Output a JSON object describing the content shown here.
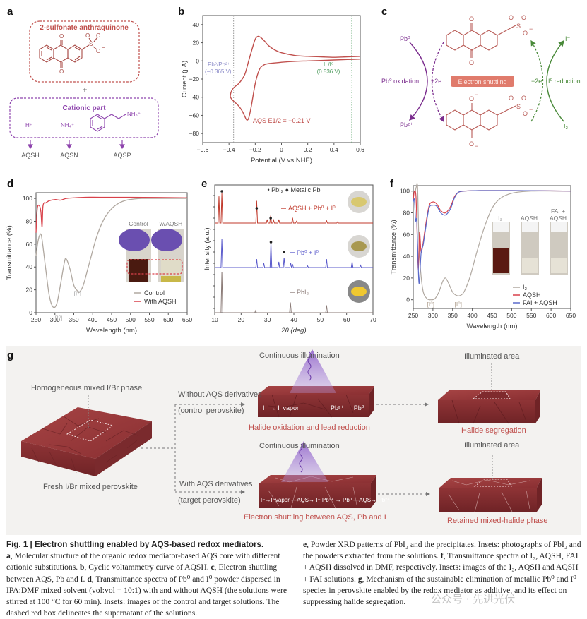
{
  "panels": {
    "a": {
      "label": "a",
      "core_title": "2-sulfonate anthraquinone",
      "plus": "+",
      "cation_title": "Cationic part",
      "cations": [
        "H⁺",
        "NH₄⁺",
        "NH₃⁺"
      ],
      "products": [
        "AQSH",
        "AQSN",
        "AQSP"
      ],
      "colors": {
        "core": "#c0504d",
        "cation": "#8e44ad"
      }
    },
    "c": {
      "label": "c",
      "pb0": "Pb⁰",
      "pb2": "Pb²⁺",
      "pb_ox": "Pb⁰ oxidation",
      "plus2e": "+2e",
      "center": "Electron shuttling",
      "minus2e": "−2e",
      "i_red": "I⁰ reduction",
      "i_minus": "I⁻",
      "i2": "I₂",
      "colors": {
        "pb": "#7b2d8e",
        "i": "#4a8a3a",
        "center_bg": "#e07b6c"
      }
    },
    "g": {
      "label": "g",
      "homogeneous": "Homogeneous mixed I/Br phase",
      "fresh": "Fresh I/Br mixed perovskite",
      "without": "Without AQS derivatives",
      "control": "(control perovskite)",
      "with": "With AQS derivatives",
      "target": "(target perovskite)",
      "illum1": "Continuous illumination",
      "illum2": "Continuous illumination",
      "ctrl_eq_left": "I⁻ → I⁻vapor",
      "ctrl_eq_right": "Pb²⁺ → Pb⁰",
      "tgt_eq": "I⁻→I⁻vapor —AQS→ I⁻ Pb²⁺ → Pb⁰ —AQS→ Pb²⁺",
      "result_ctrl_mid": "Halide oxidation and lead reduction",
      "result_tgt_mid": "Electron shuttling between AQS, Pb and I",
      "illuminated1": "Illuminated area",
      "illuminated2": "Illuminated area",
      "result_ctrl": "Halide segregation",
      "result_tgt": "Retained mixed-halide phase"
    }
  },
  "caption": {
    "title": "Fig. 1 | Electron shuttling enabled by AQS-based redox mediators.",
    "left": [
      {
        "b": "a",
        "t": ", Molecular structure of the organic redox mediator-based AQS core with different cationic substitutions. "
      },
      {
        "b": "b",
        "t": ", Cyclic voltammetry curve of AQSH. "
      },
      {
        "b": "c",
        "t": ", Electron shuttling between AQS, Pb and I. "
      },
      {
        "b": "d",
        "t": ", Transmittance spectra of Pb⁰ and I⁰ powder dispersed in IPA:DMF mixed solvent (vol:vol = 10:1) with and without AQSH (the solutions were stirred at 100 °C for 60 min). Insets: images of the control and target solutions. The dashed red box delineates the supernatant of the solutions."
      }
    ],
    "right": [
      {
        "b": "e",
        "t": ", Powder XRD patterns of PbI₂ and the precipitates. Insets: photographs of PbI₂ and the powders extracted from the solutions. "
      },
      {
        "b": "f",
        "t": ", Transmittance spectra of I₂, AQSH, FAI + AQSH dissolved in DMF, respectively. Insets: images of the I₂, AQSH and AQSH + FAI solutions. "
      },
      {
        "b": "g",
        "t": ", Mechanism of the sustainable elimination of metallic Pb⁰ and I⁰ species in perovskite enabled by the redox mediator as additive, and its effect on suppressing halide segregation."
      }
    ],
    "watermark": "公众号 · 先进光伏"
  },
  "chart_data": [
    {
      "id": "b",
      "type": "line",
      "title": "",
      "xlabel": "Potential (V vs NHE)",
      "ylabel": "Current (μA)",
      "xlim": [
        -0.6,
        0.6
      ],
      "ylim": [
        -90,
        50
      ],
      "xticks": [
        -0.6,
        -0.4,
        -0.2,
        0,
        0.2,
        0.4,
        0.6
      ],
      "yticks": [
        40,
        20,
        0,
        -20,
        -40,
        -60,
        -80
      ],
      "series": [
        {
          "name": "AQSH CV",
          "color": "#c0504d",
          "x": [
            0.6,
            0.5,
            0.4,
            0.3,
            0.2,
            0.1,
            0.0,
            -0.05,
            -0.1,
            -0.13,
            -0.16,
            -0.18,
            -0.2,
            -0.22,
            -0.25,
            -0.28,
            -0.32,
            -0.36,
            -0.38,
            -0.39,
            -0.38,
            -0.36,
            -0.33,
            -0.3,
            -0.28,
            -0.265,
            -0.25,
            -0.23,
            -0.2,
            -0.17,
            -0.14,
            -0.1,
            0.0,
            0.1,
            0.2,
            0.3,
            0.4,
            0.5,
            0.6
          ],
          "y": [
            5,
            4.5,
            4,
            4.5,
            5,
            6,
            9,
            12,
            17,
            22,
            26,
            27,
            24,
            15,
            0,
            -15,
            -24,
            -29,
            -33,
            -39,
            -42,
            -45,
            -49,
            -55,
            -61,
            -65,
            -63,
            -50,
            -25,
            -10,
            -5,
            -3,
            -1.5,
            -0.5,
            0,
            0.5,
            1,
            1.5,
            2
          ]
        }
      ],
      "annotations": [
        {
          "text": "Pb⁰/Pb²⁺",
          "sub": "(−0.365 V)",
          "x": -0.365,
          "color": "#8a8ac8"
        },
        {
          "text": "I⁻/I⁰",
          "sub": "(0.536 V)",
          "x": 0.536,
          "color": "#4a9a5a"
        },
        {
          "text": "AQS E1/2 = −0.21 V",
          "color": "#c0504d"
        }
      ]
    },
    {
      "id": "d",
      "type": "line",
      "xlabel": "Wavelength (nm)",
      "ylabel": "Transmittance (%)",
      "xlim": [
        250,
        650
      ],
      "ylim": [
        0,
        105
      ],
      "xticks": [
        250,
        300,
        350,
        400,
        450,
        500,
        550,
        600,
        650
      ],
      "yticks": [
        0,
        20,
        40,
        60,
        80,
        100
      ],
      "legend": "bottom-right",
      "series": [
        {
          "name": "Control",
          "color": "#b0a8a0",
          "x": [
            250,
            255,
            260,
            265,
            275,
            285,
            295,
            305,
            315,
            325,
            330,
            340,
            350,
            360,
            365,
            375,
            390,
            410,
            430,
            450,
            470,
            490,
            510,
            530,
            560,
            600,
            650
          ],
          "y": [
            50,
            62,
            68,
            66,
            40,
            15,
            5,
            8,
            25,
            44,
            47,
            38,
            24,
            19,
            18,
            24,
            42,
            66,
            82,
            91,
            96,
            98.5,
            99.5,
            100,
            100,
            100,
            100
          ]
        },
        {
          "name": "With AQSH",
          "color": "#d9414a",
          "x": [
            250,
            253,
            256,
            260,
            263,
            266,
            268,
            271,
            275,
            285,
            300,
            315,
            330,
            350,
            380,
            420,
            500,
            650
          ],
          "y": [
            70,
            90,
            94,
            93,
            88,
            75,
            92,
            96,
            96,
            98,
            99,
            98.5,
            100,
            100.5,
            101,
            101,
            101,
            100.5
          ]
        }
      ],
      "annotations": [
        "[I⁰]",
        "[I⁰]"
      ],
      "inset_labels": [
        "Control",
        "w/AQSH"
      ]
    },
    {
      "id": "e",
      "type": "line",
      "xlabel": "2θ (deg)",
      "ylabel": "Intensity (a.u.)",
      "xlim": [
        10,
        70
      ],
      "xticks": [
        10,
        20,
        30,
        40,
        50,
        60,
        70
      ],
      "legend_markers": [
        "PbI₂",
        "Metalic Pb"
      ],
      "series": [
        {
          "name": "AQSH + Pb⁰ + I⁰",
          "color": "#c0392b",
          "peaks": [
            [
              11.6,
              0.9
            ],
            [
              12.7,
              1.0
            ],
            [
              25.9,
              0.75
            ],
            [
              29.9,
              0.12
            ],
            [
              31.2,
              0.25
            ],
            [
              32.3,
              0.1
            ],
            [
              34.3,
              0.12
            ],
            [
              39.5,
              0.18
            ],
            [
              41.0,
              0.06
            ],
            [
              52.4,
              0.08
            ],
            [
              56.6,
              0.04
            ]
          ]
        },
        {
          "name": "Pb⁰ + I⁰",
          "color": "#5a5acb",
          "peaks": [
            [
              12.7,
              1.0
            ],
            [
              25.9,
              0.3
            ],
            [
              28.6,
              0.15
            ],
            [
              31.3,
              0.9
            ],
            [
              34.3,
              0.2
            ],
            [
              36.3,
              0.35
            ],
            [
              38.8,
              0.15
            ],
            [
              39.5,
              0.12
            ],
            [
              45.2,
              0.06
            ],
            [
              52.4,
              0.3
            ],
            [
              62.1,
              0.2
            ],
            [
              65.3,
              0.08
            ]
          ]
        },
        {
          "name": "PbI₂",
          "color": "#8a7a76",
          "peaks": [
            [
              12.7,
              1.0
            ],
            [
              25.5,
              0.05
            ],
            [
              38.7,
              0.25
            ],
            [
              52.4,
              0.18
            ]
          ]
        }
      ]
    },
    {
      "id": "f",
      "type": "line",
      "xlabel": "Wavelength (nm)",
      "ylabel": "Transmittance (%)",
      "xlim": [
        250,
        650
      ],
      "ylim": [
        -8,
        105
      ],
      "xticks": [
        250,
        300,
        350,
        400,
        450,
        500,
        550,
        600,
        650
      ],
      "yticks": [
        0,
        20,
        40,
        60,
        80,
        100
      ],
      "legend": "bottom-right",
      "series": [
        {
          "name": "I₂",
          "color": "#b0a8a0",
          "x": [
            250,
            255,
            258,
            261,
            264,
            268,
            275,
            285,
            295,
            305,
            315,
            325,
            332,
            340,
            350,
            360,
            370,
            380,
            395,
            410,
            430,
            450,
            470,
            500,
            550,
            650
          ],
          "y": [
            100,
            100,
            104,
            104,
            60,
            30,
            8,
            1,
            0,
            1,
            7,
            17,
            20,
            15,
            7,
            4,
            4,
            8,
            22,
            42,
            66,
            84,
            93,
            98,
            100,
            100
          ]
        },
        {
          "name": "AQSH",
          "color": "#d9414a",
          "x": [
            250,
            253,
            257,
            260,
            263,
            266,
            270,
            275,
            280,
            290,
            300,
            310,
            320,
            332,
            345,
            355,
            365,
            380,
            420,
            500,
            650
          ],
          "y": [
            92,
            100,
            95,
            60,
            28,
            62,
            44,
            52,
            65,
            86,
            90,
            88,
            82,
            80,
            86,
            95,
            99,
            100,
            100.5,
            100.5,
            100
          ]
        },
        {
          "name": "FAI + AQSH",
          "color": "#5a6acb",
          "x": [
            250,
            253,
            256,
            259,
            262,
            265,
            270,
            275,
            280,
            290,
            300,
            310,
            320,
            332,
            345,
            355,
            365,
            380,
            420,
            500,
            650
          ],
          "y": [
            90,
            92,
            73,
            73,
            40,
            15,
            43,
            50,
            62,
            84,
            87,
            86,
            80,
            78,
            84,
            94,
            99,
            100,
            100.5,
            100.5,
            100
          ]
        }
      ],
      "annotations": [
        "[I⁰]",
        "[I⁰]"
      ],
      "inset_labels": [
        "I₂",
        "AQSH",
        "FAI + AQSH"
      ]
    }
  ]
}
